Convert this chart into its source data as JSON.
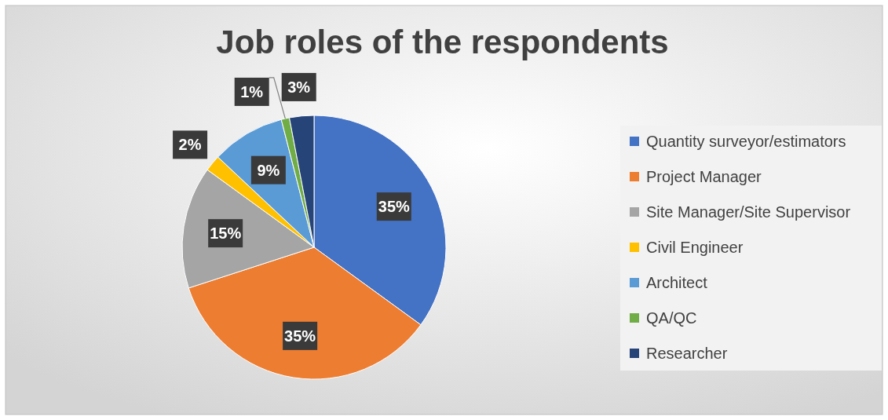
{
  "chart_data": {
    "type": "pie",
    "title": "Job roles of the respondents",
    "categories": [
      "Quantity surveyor/estimators",
      "Project Manager",
      "Site Manager/Site Supervisor",
      "Civil Engineer",
      "Architect",
      "QA/QC",
      "Researcher"
    ],
    "values": [
      35,
      35,
      15,
      2,
      9,
      1,
      3
    ],
    "colors": [
      "#4472c4",
      "#ed7d31",
      "#a5a5a5",
      "#ffc000",
      "#5b9bd5",
      "#70ad47",
      "#264478"
    ],
    "value_labels": [
      "35%",
      "35%",
      "15%",
      "2%",
      "9%",
      "1%",
      "3%"
    ],
    "legend": "right"
  }
}
